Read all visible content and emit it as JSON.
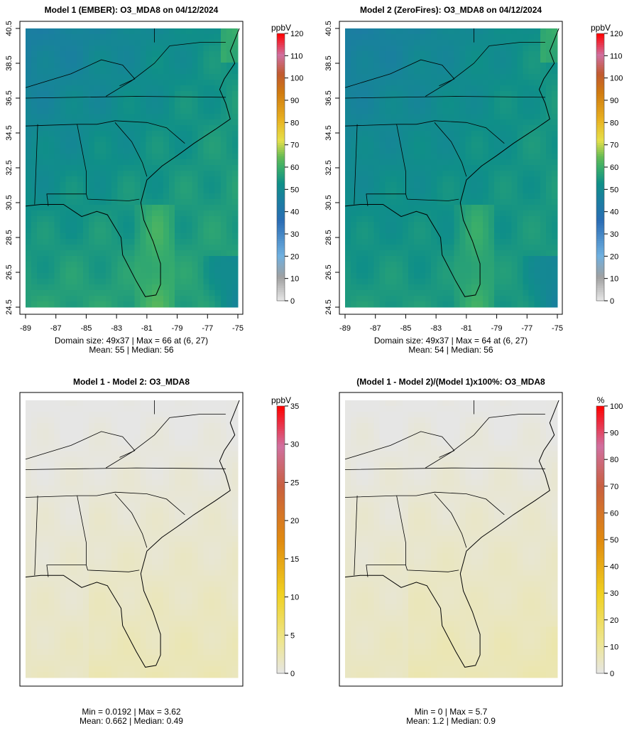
{
  "panels": [
    {
      "title": "Model 1 (EMBER): O3_MDA8 on 04/12/2024",
      "unit": "ppbV",
      "stats_line1": "Domain size: 49x37 | Max = 66 at (6, 27)",
      "stats_line2": "Mean: 55 |  Median: 56",
      "colorbar_ticks": [
        0,
        10,
        20,
        30,
        40,
        50,
        60,
        70,
        80,
        90,
        100,
        110,
        120
      ],
      "kind": "m1"
    },
    {
      "title": "Model 2 (ZeroFires): O3_MDA8 on 04/12/2024",
      "unit": "ppbV",
      "stats_line1": "Domain size: 49x37 | Max = 64 at (6, 27)",
      "stats_line2": "Mean: 54 |  Median: 56",
      "colorbar_ticks": [
        0,
        10,
        20,
        30,
        40,
        50,
        60,
        70,
        80,
        90,
        100,
        110,
        120
      ],
      "kind": "m2"
    },
    {
      "title": "Model 1 - Model 2: O3_MDA8",
      "unit": "ppbV",
      "stats_line1": "Min = 0.0192 | Max = 3.62",
      "stats_line2": "Mean: 0.662 |  Median: 0.49",
      "colorbar_ticks": [
        0,
        5,
        10,
        15,
        20,
        25,
        30,
        35
      ],
      "kind": "diff"
    },
    {
      "title": "(Model 1 - Model 2)/(Model 1)x100%: O3_MDA8",
      "unit": "%",
      "stats_line1": "Min = 0 | Max = 5.7",
      "stats_line2": "Mean: 1.2 |  Median: 0.9",
      "colorbar_ticks": [
        0,
        10,
        20,
        30,
        40,
        50,
        60,
        70,
        80,
        90,
        100
      ],
      "kind": "pct"
    }
  ],
  "axes": {
    "lon_ticks": [
      "-89",
      "-87",
      "-85",
      "-83",
      "-81",
      "-79",
      "-77",
      "-75"
    ],
    "lat_ticks": [
      "24.5",
      "26.5",
      "28.5",
      "30.5",
      "32.5",
      "34.5",
      "36.5",
      "38.5",
      "40.5"
    ]
  }
}
